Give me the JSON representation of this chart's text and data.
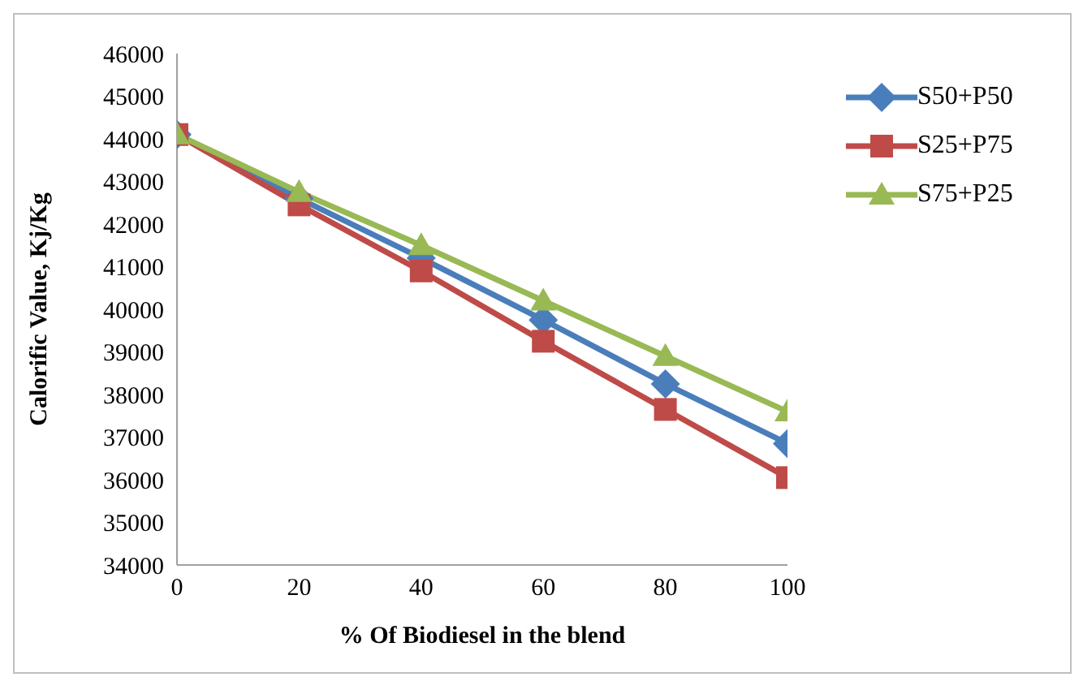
{
  "chart_data": {
    "type": "line",
    "xlabel": "% Of Biodiesel in the blend",
    "ylabel": "Calorific Value, Kj/Kg",
    "x": [
      0,
      20,
      40,
      60,
      80,
      100
    ],
    "xlim": [
      0,
      100
    ],
    "xticks": [
      0,
      20,
      40,
      60,
      80,
      100
    ],
    "ylim": [
      34000,
      46000
    ],
    "yticks": [
      34000,
      35000,
      36000,
      37000,
      38000,
      39000,
      40000,
      41000,
      42000,
      43000,
      44000,
      45000,
      46000
    ],
    "grid": false,
    "legend": "top right",
    "series": [
      {
        "name": "S50+P50",
        "color": "#4a7ebb",
        "marker": "diamond",
        "values": [
          44100,
          42600,
          41200,
          39750,
          38250,
          36850
        ]
      },
      {
        "name": "S25+P75",
        "color": "#be4b48",
        "marker": "square",
        "values": [
          44100,
          42450,
          40900,
          39250,
          37650,
          36050
        ]
      },
      {
        "name": "S75+P25",
        "color": "#98b954",
        "marker": "triangle",
        "values": [
          44100,
          42750,
          41500,
          40200,
          38900,
          37600
        ]
      }
    ]
  }
}
